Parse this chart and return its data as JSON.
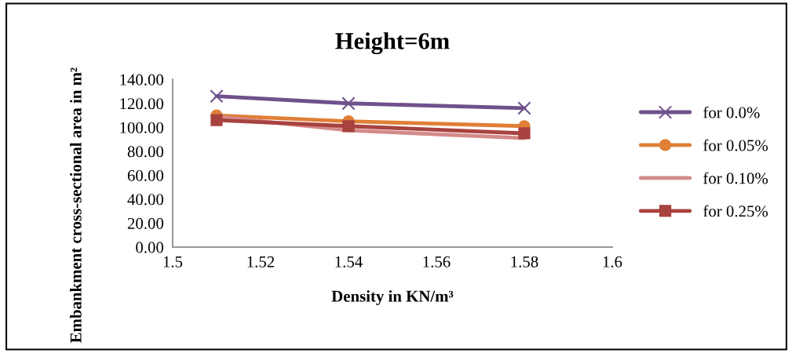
{
  "chart_data": {
    "type": "line",
    "title": "Height=6m",
    "xlabel": "Density in KN/m³",
    "ylabel": "Embankment cross-sectional area in m²",
    "x": [
      1.51,
      1.54,
      1.58
    ],
    "series": [
      {
        "name": "for 0.0%",
        "color": "#6f518c",
        "marker": "cross",
        "values": [
          126,
          120,
          116
        ]
      },
      {
        "name": "for 0.05%",
        "color": "#e07f36",
        "marker": "circle",
        "values": [
          110,
          105,
          101
        ]
      },
      {
        "name": "for 0.10%",
        "color": "#d48a8a",
        "marker": "none",
        "values": [
          109,
          97.5,
          91
        ]
      },
      {
        "name": "for 0.25%",
        "color": "#a8423f",
        "marker": "square",
        "values": [
          106,
          101,
          95
        ]
      }
    ],
    "xlim": [
      1.5,
      1.6
    ],
    "xticks": [
      1.5,
      1.52,
      1.54,
      1.56,
      1.58,
      1.6
    ],
    "ylim": [
      0,
      140
    ],
    "yticks": [
      {
        "value": 0,
        "label": "0.00"
      },
      {
        "value": 20,
        "label": "20.00"
      },
      {
        "value": 40,
        "label": "40.00"
      },
      {
        "value": 60,
        "label": "60.00"
      },
      {
        "value": 80,
        "label": "80.00"
      },
      {
        "value": 100,
        "label": "100.00"
      },
      {
        "value": 120,
        "label": "120.00"
      },
      {
        "value": 140,
        "label": "140.00"
      }
    ],
    "grid": false,
    "legend": "right",
    "line_style": "solid"
  }
}
